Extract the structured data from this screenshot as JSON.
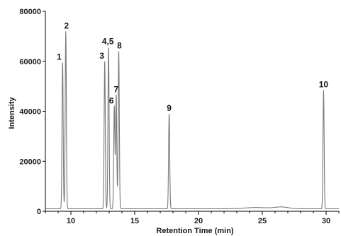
{
  "chart_data": {
    "type": "line",
    "title": "",
    "xlabel": "Retention Time (min)",
    "ylabel": "Intensity",
    "xlim": [
      8,
      31
    ],
    "ylim": [
      0,
      80000
    ],
    "xticks": [
      10,
      15,
      20,
      25,
      30
    ],
    "yticks": [
      0,
      20000,
      40000,
      60000,
      80000
    ],
    "grid": false,
    "baseline": 1000,
    "peaks": [
      {
        "label": "1",
        "x": 9.35,
        "y": 59500
      },
      {
        "label": "2",
        "x": 9.6,
        "y": 72000
      },
      {
        "label": "3",
        "x": 12.65,
        "y": 60000
      },
      {
        "label": "4,5",
        "x": 12.95,
        "y": 65500
      },
      {
        "label": "6",
        "x": 13.4,
        "y": 42000
      },
      {
        "label": "7",
        "x": 13.55,
        "y": 46500
      },
      {
        "label": "8",
        "x": 13.75,
        "y": 64000
      },
      {
        "label": "9",
        "x": 17.7,
        "y": 39000
      },
      {
        "label": "10",
        "x": 29.8,
        "y": 48500
      }
    ]
  }
}
